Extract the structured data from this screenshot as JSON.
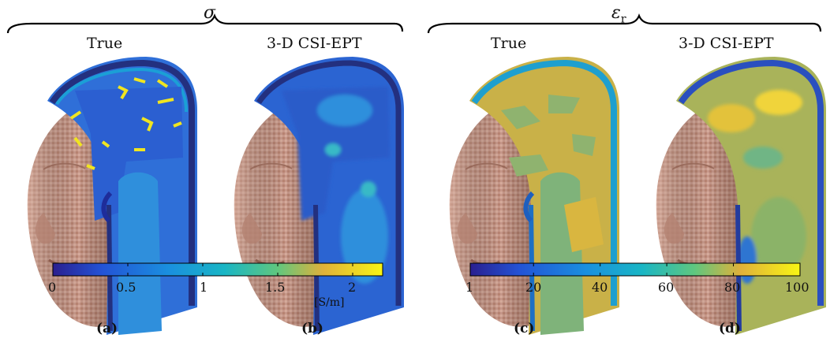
{
  "groups": [
    {
      "symbol": "σ",
      "panels": [
        "True",
        "3-D CSI-EPT"
      ]
    },
    {
      "symbol": "ε",
      "symbol_sub": "r",
      "panels": [
        "True",
        "3-D CSI-EPT"
      ]
    }
  ],
  "colorbars": [
    {
      "quantity": "sigma",
      "ticks": [
        "0",
        "0.5",
        "1",
        "1.5",
        "2"
      ],
      "unit": "[S/m]",
      "range": [
        0,
        2.2
      ]
    },
    {
      "quantity": "eps_r",
      "ticks": [
        "1",
        "20",
        "40",
        "60",
        "80",
        "100"
      ],
      "range": [
        1,
        100
      ]
    }
  ],
  "captions": [
    "(a)",
    "(b)",
    "(c)",
    "(d)"
  ],
  "colors": {
    "skin": "#c89a86",
    "low": "#2b2fa0",
    "mid": "#2aa7c8",
    "high": "#f5e81a"
  }
}
